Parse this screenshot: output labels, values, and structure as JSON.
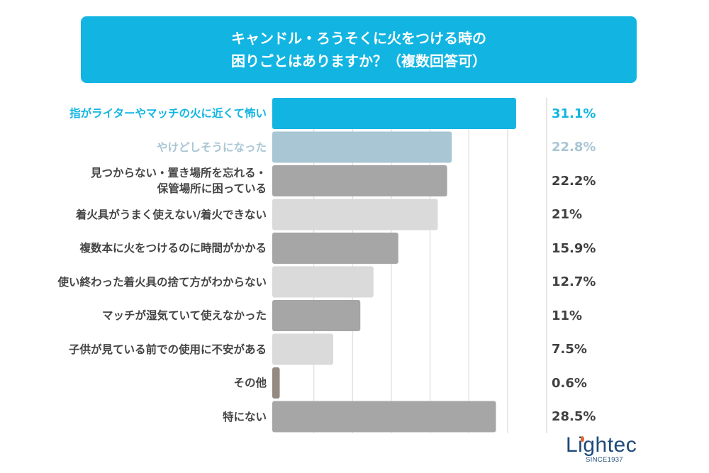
{
  "chart_data": {
    "type": "bar",
    "orientation": "horizontal",
    "title_lines": [
      "キャンドル・ろうそくに火をつける時の",
      "困りごとはありますか？（複数回答可）"
    ],
    "categories": [
      [
        "指がライターやマッチの火に近くて怖い"
      ],
      [
        "やけどしそうになった"
      ],
      [
        "見つからない・置き場所を忘れる・",
        "保管場所に困っている"
      ],
      [
        "着火具がうまく使えない/着火できない"
      ],
      [
        "複数本に火をつけるのに時間がかかる"
      ],
      [
        "使い終わった着火具の捨て方がわからない"
      ],
      [
        "マッチが湿気ていて使えなかった"
      ],
      [
        "子供が見ている前での使用に不安がある"
      ],
      [
        "その他"
      ],
      [
        "特にない"
      ]
    ],
    "values": [
      31.1,
      22.8,
      22.2,
      21,
      15.9,
      12.7,
      11,
      7.5,
      0.6,
      28.5
    ],
    "value_labels": [
      "31.1%",
      "22.8%",
      "22.2%",
      "21%",
      "15.9%",
      "12.7%",
      "11%",
      "7.5%",
      "0.6%",
      "28.5%"
    ],
    "bar_colors": [
      "#12b5e2",
      "#a8c6d4",
      "#a6a6a6",
      "#dadada",
      "#a6a6a6",
      "#dadada",
      "#a6a6a6",
      "#dadada",
      "#958a82",
      "#a6a6a6"
    ],
    "label_colors": [
      "#12b5e2",
      "#a8c6d4",
      "#444444",
      "#444444",
      "#444444",
      "#444444",
      "#444444",
      "#444444",
      "#444444",
      "#444444"
    ],
    "xlim": [
      0,
      35
    ],
    "gridlines": [
      5,
      10,
      15,
      20,
      25,
      30
    ],
    "grid": true,
    "unit": "%"
  },
  "logo": {
    "name": "Lightec",
    "tagline": "SINCE1937",
    "color": "#1d4a7a",
    "flame_color": "#e5652a"
  },
  "colors": {
    "accent": "#12b5e2",
    "grid": "#dddddd"
  }
}
